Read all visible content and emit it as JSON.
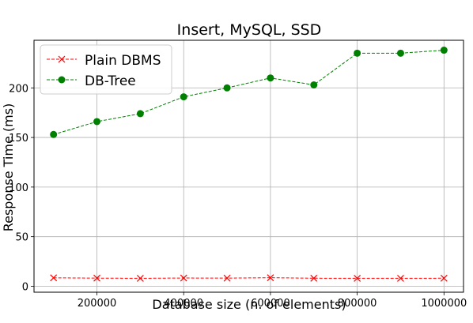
{
  "chart_data": {
    "type": "line",
    "title": "Insert, MySQL, SSD",
    "xlabel": "Database size (n. of elements)",
    "ylabel": "Response Time (ms)",
    "x": [
      100000,
      200000,
      300000,
      400000,
      500000,
      600000,
      700000,
      800000,
      900000,
      1000000
    ],
    "xticks": [
      "200000",
      "400000",
      "600000",
      "800000",
      "1000000"
    ],
    "yticks": [
      "0",
      "50",
      "100",
      "150",
      "200"
    ],
    "xlim": [
      55000,
      1045000
    ],
    "ylim": [
      -6,
      248
    ],
    "grid": true,
    "legend_position": "top-left",
    "series": [
      {
        "name": "Plain DBMS",
        "color": "#ff0000",
        "marker": "x",
        "line_style": "dashed",
        "values": [
          8.5,
          8.2,
          8.0,
          8.3,
          8.2,
          8.6,
          8.1,
          8.0,
          8.0,
          8.1
        ]
      },
      {
        "name": "DB-Tree",
        "color": "#008000",
        "marker": "circle",
        "line_style": "dashed",
        "values": [
          153,
          166,
          174,
          191,
          200,
          210,
          203,
          235,
          235,
          238
        ]
      }
    ]
  }
}
